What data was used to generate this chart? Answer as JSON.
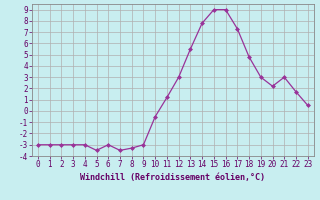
{
  "x": [
    0,
    1,
    2,
    3,
    4,
    5,
    6,
    7,
    8,
    9,
    10,
    11,
    12,
    13,
    14,
    15,
    16,
    17,
    18,
    19,
    20,
    21,
    22,
    23
  ],
  "y": [
    -3,
    -3,
    -3,
    -3,
    -3,
    -3.5,
    -3,
    -3.5,
    -3.3,
    -3,
    -0.5,
    1.2,
    3,
    5.5,
    7.8,
    9.0,
    9.0,
    7.3,
    4.8,
    3.0,
    2.2,
    3.0,
    1.7,
    0.5
  ],
  "line_color": "#993399",
  "marker_color": "#993399",
  "bg_color": "#c8eef0",
  "grid_color": "#b0b0b0",
  "xlabel": "Windchill (Refroidissement éolien,°C)",
  "xlabel_color": "#660066",
  "tick_color": "#660066",
  "ylim": [
    -4,
    9.5
  ],
  "xlim": [
    -0.5,
    23.5
  ],
  "yticks": [
    -4,
    -3,
    -2,
    -1,
    0,
    1,
    2,
    3,
    4,
    5,
    6,
    7,
    8,
    9
  ],
  "xticks": [
    0,
    1,
    2,
    3,
    4,
    5,
    6,
    7,
    8,
    9,
    10,
    11,
    12,
    13,
    14,
    15,
    16,
    17,
    18,
    19,
    20,
    21,
    22,
    23
  ],
  "tick_fontsize": 5.5,
  "xlabel_fontsize": 6.0
}
